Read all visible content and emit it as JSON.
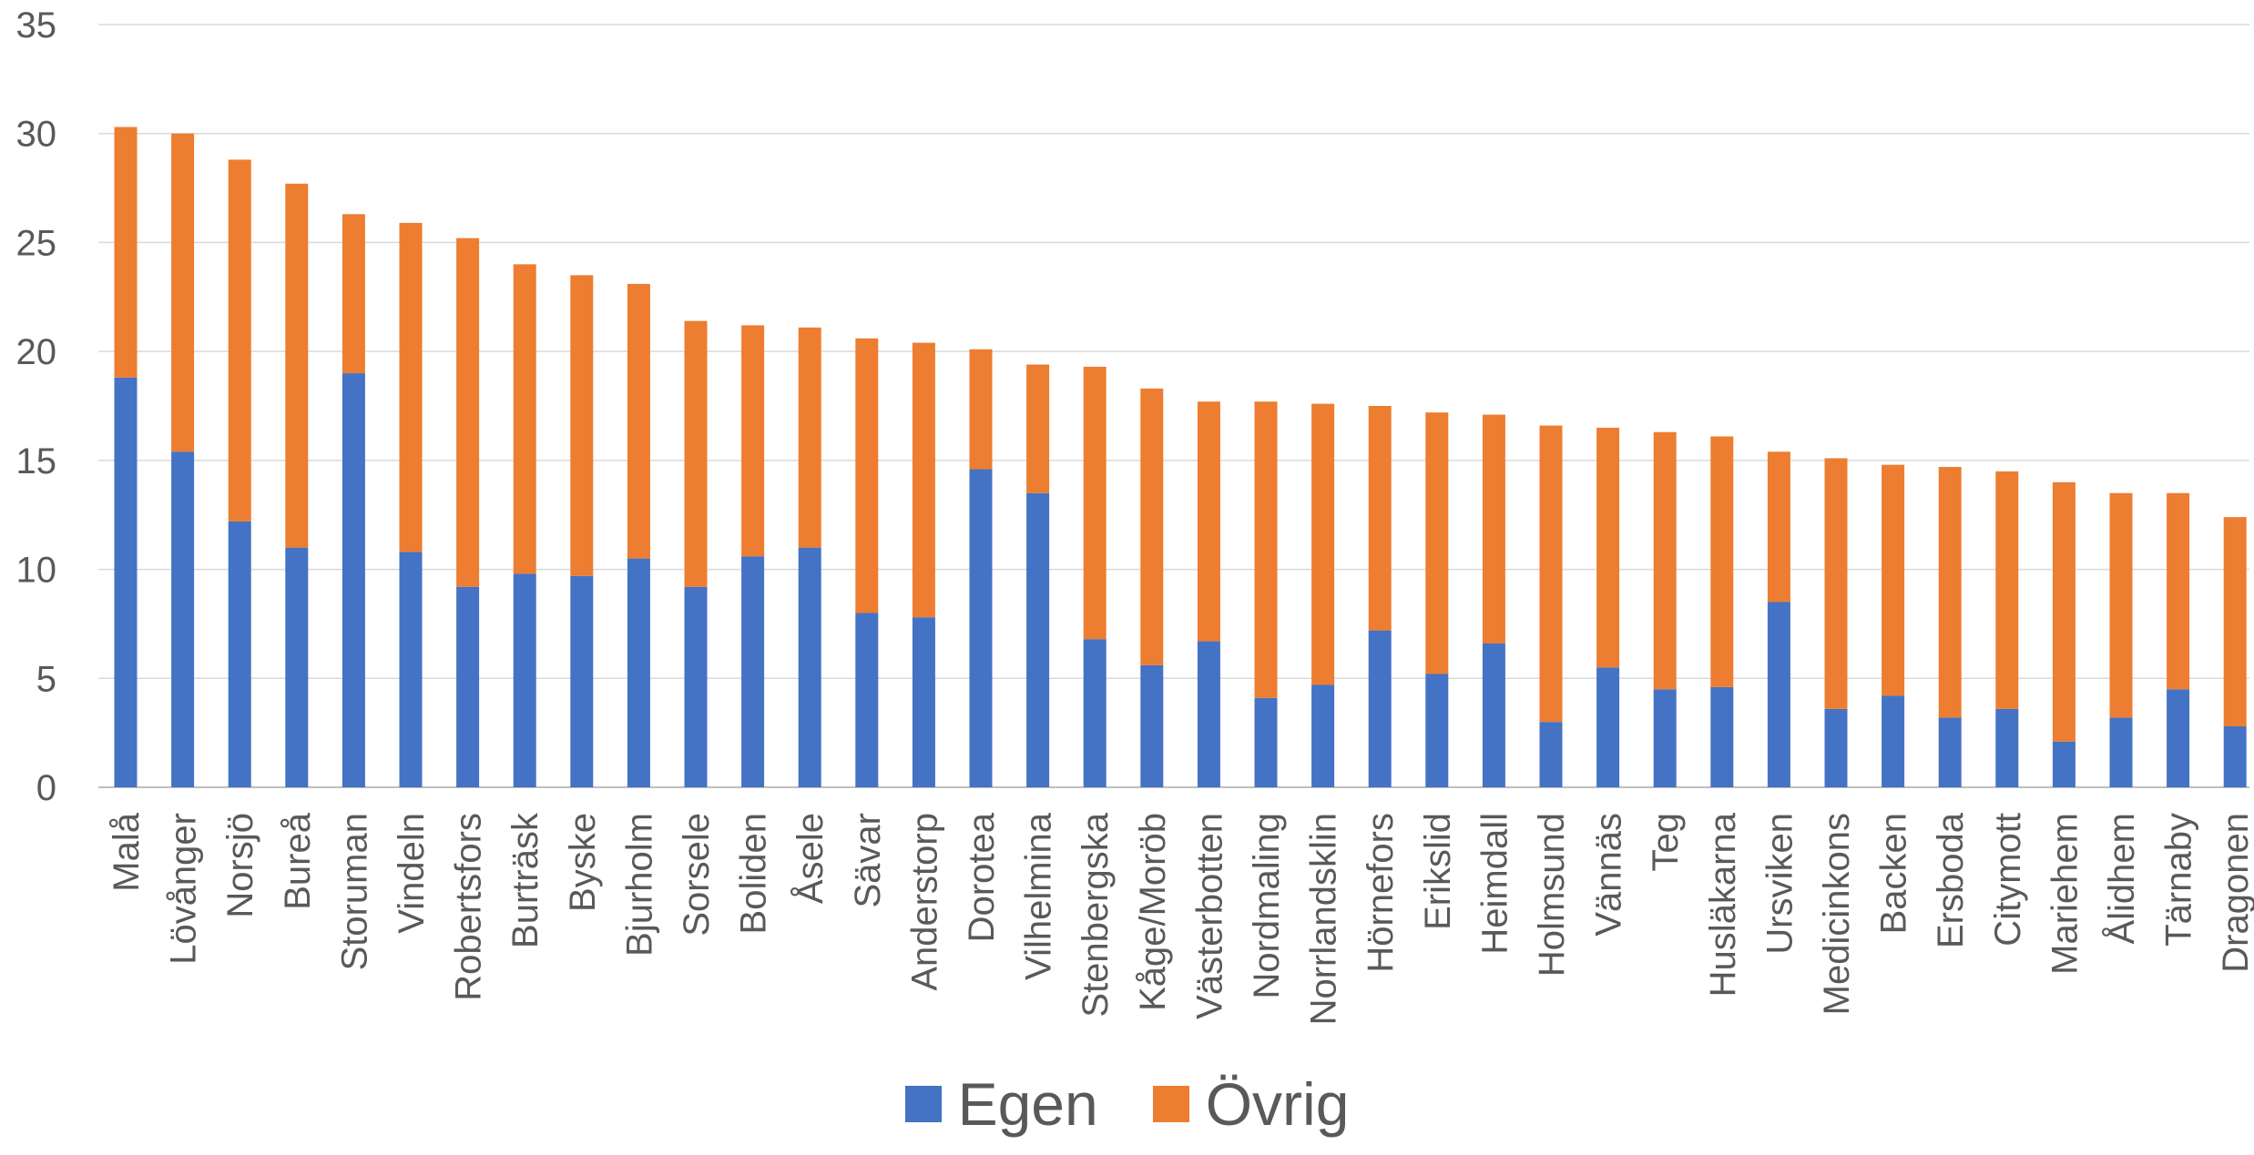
{
  "chart_data": {
    "type": "bar",
    "stacked": true,
    "title": "",
    "xlabel": "",
    "ylabel": "",
    "ylim": [
      0,
      35
    ],
    "yticks": [
      0,
      5,
      10,
      15,
      20,
      25,
      30,
      35
    ],
    "grid": true,
    "legend_position": "bottom",
    "categories": [
      "Malå",
      "Lövånger",
      "Norsjö",
      "Bureå",
      "Storuman",
      "Vindeln",
      "Robertsfors",
      "Burträsk",
      "Byske",
      "Bjurholm",
      "Sorsele",
      "Boliden",
      "Åsele",
      "Sävar",
      "Anderstorp",
      "Dorotea",
      "Vilhelmina",
      "Stenbergska",
      "Kåge/Moröb",
      "Västerbotten",
      "Nordmaling",
      "Norrlandsklin",
      "Hörnefors",
      "Erikslid",
      "Heimdall",
      "Holmsund",
      "Vännäs",
      "Teg",
      "Husläkarna",
      "Ursviken",
      "Medicinkons",
      "Backen",
      "Ersboda",
      "Citymott",
      "Mariehem",
      "Ålidhem",
      "Tärnaby",
      "Dragonen"
    ],
    "series": [
      {
        "name": "Egen",
        "color": "#4472C4",
        "values": [
          18.8,
          15.4,
          12.2,
          11.0,
          19.0,
          10.8,
          9.2,
          9.8,
          9.7,
          10.5,
          9.2,
          10.6,
          11.0,
          8.0,
          7.8,
          14.6,
          13.5,
          6.8,
          5.6,
          6.7,
          4.1,
          4.7,
          7.2,
          5.2,
          6.6,
          3.0,
          5.5,
          4.5,
          4.6,
          8.5,
          3.6,
          4.2,
          3.2,
          3.6,
          2.1,
          3.2,
          4.5,
          2.8
        ]
      },
      {
        "name": "Övrig",
        "color": "#ED7D31",
        "values": [
          11.5,
          14.6,
          16.6,
          16.7,
          7.3,
          15.1,
          16.0,
          14.2,
          13.8,
          12.6,
          12.2,
          10.6,
          10.1,
          12.6,
          12.6,
          5.5,
          5.9,
          12.5,
          12.7,
          11.0,
          13.6,
          12.9,
          10.3,
          12.0,
          10.5,
          13.6,
          11.0,
          11.8,
          11.5,
          6.9,
          11.5,
          10.6,
          11.5,
          10.9,
          11.9,
          10.3,
          9.0,
          9.6
        ]
      }
    ]
  }
}
